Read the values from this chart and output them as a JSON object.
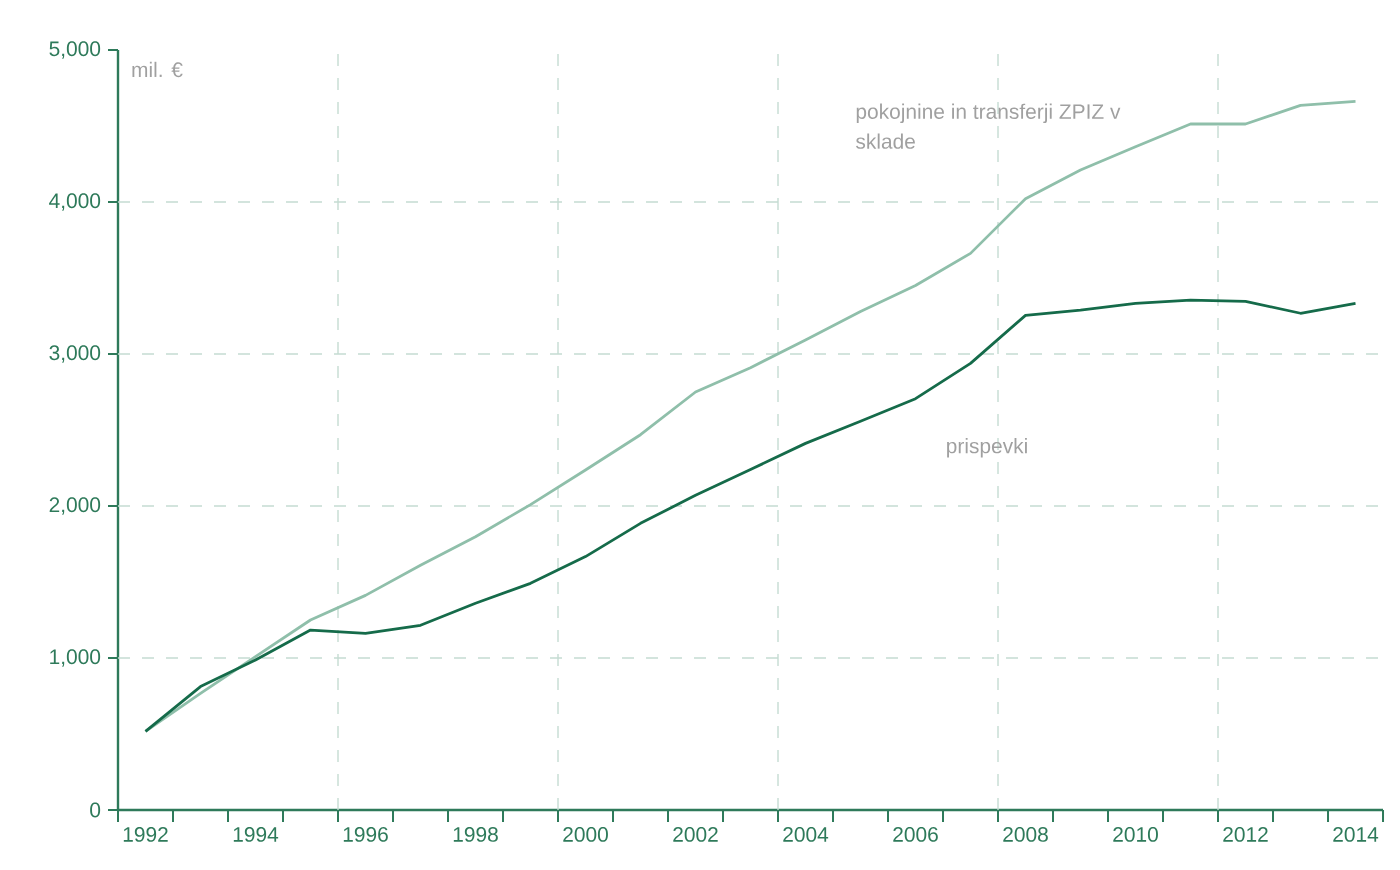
{
  "chart_data": {
    "type": "line",
    "ylabel": "mil. €",
    "categories": [
      "1992",
      null,
      "1994",
      null,
      "1996",
      null,
      "1998",
      null,
      "2000",
      null,
      "2002",
      null,
      "2004",
      null,
      "2006",
      null,
      "2008",
      null,
      "2010",
      null,
      "2012",
      null,
      "2014"
    ],
    "series": [
      {
        "name": "pokojnine in transferji ZPIZ v sklade",
        "color": "#8fbfaa",
        "values": [
          517,
          767,
          1009,
          1250,
          1412,
          1610,
          1798,
          2009,
          2237,
          2469,
          2750,
          2910,
          3092,
          3280,
          3451,
          3662,
          4022,
          4211,
          4364,
          4513,
          4513,
          4636,
          4662
        ]
      },
      {
        "name": "prispevki",
        "color": "#156b4a",
        "values": [
          517,
          812,
          987,
          1184,
          1162,
          1215,
          1360,
          1491,
          1667,
          1886,
          2070,
          2240,
          2412,
          2557,
          2706,
          2938,
          3254,
          3289,
          3333,
          3355,
          3346,
          3268,
          3333
        ]
      }
    ],
    "ylim": [
      0,
      5000
    ],
    "yticks": [
      0,
      {
        "value": 1000,
        "label": "1,000"
      },
      {
        "value": 2000,
        "label": "2,000"
      },
      {
        "value": 3000,
        "label": "3,000"
      },
      {
        "value": 4000,
        "label": "4,000"
      },
      {
        "value": 5000,
        "label": "5,000"
      }
    ],
    "grid": true
  }
}
